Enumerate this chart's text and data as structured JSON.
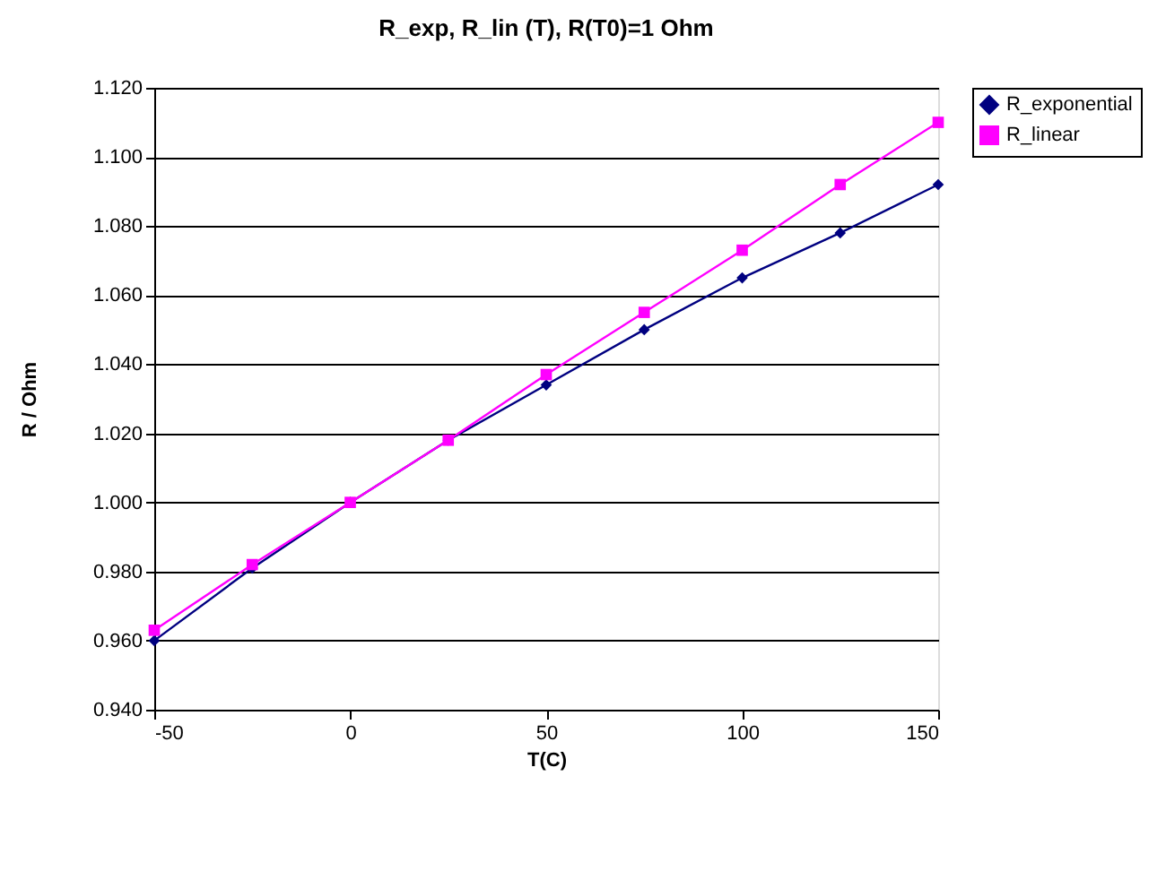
{
  "chart_data": {
    "type": "line",
    "title": "R_exp, R_lin (T), R(T0)=1 Ohm",
    "xlabel": "T(C)",
    "ylabel": "R / Ohm",
    "x": [
      -50,
      -25,
      0,
      25,
      50,
      75,
      100,
      125,
      150
    ],
    "series": [
      {
        "name": "R_exponential",
        "color": "#000080",
        "marker": "diamond",
        "values": [
          0.96,
          0.981,
          1.0,
          1.018,
          1.034,
          1.05,
          1.065,
          1.078,
          1.092
        ]
      },
      {
        "name": "R_linear",
        "color": "#ff00ff",
        "marker": "square",
        "values": [
          0.963,
          0.982,
          1.0,
          1.018,
          1.037,
          1.055,
          1.073,
          1.092,
          1.11
        ]
      }
    ],
    "xlim": [
      -50,
      150
    ],
    "xticks": [
      -50,
      0,
      50,
      100,
      150
    ],
    "ylim": [
      0.94,
      1.12
    ],
    "yticks": [
      {
        "value": 0.94,
        "label": "0.940"
      },
      {
        "value": 0.96,
        "label": "0.960"
      },
      {
        "value": 0.98,
        "label": "0.980"
      },
      {
        "value": 1.0,
        "label": "1.000"
      },
      {
        "value": 1.02,
        "label": "1.020"
      },
      {
        "value": 1.04,
        "label": "1.040"
      },
      {
        "value": 1.06,
        "label": "1.060"
      },
      {
        "value": 1.08,
        "label": "1.080"
      },
      {
        "value": 1.1,
        "label": "1.100"
      },
      {
        "value": 1.12,
        "label": "1.120"
      }
    ],
    "grid": "y",
    "legend": "right",
    "line_style": "solid"
  }
}
